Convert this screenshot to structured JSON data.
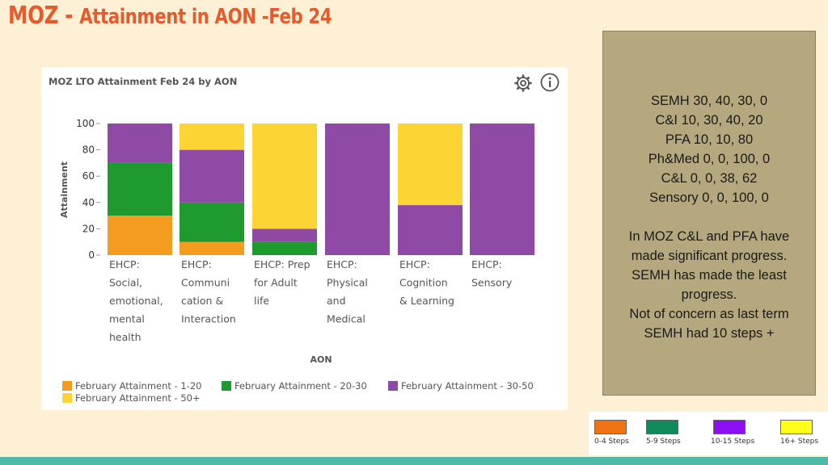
{
  "header": {
    "title_prefix": "MOZ - ",
    "title_rest": "Attainment in AON -Feb 24"
  },
  "panel": {
    "title": "MOZ LTO Attainment Feb 24 by AON"
  },
  "chart_data": {
    "type": "bar",
    "stacked": true,
    "title": "MOZ LTO Attainment Feb 24 by AON",
    "xlabel": "AON",
    "ylabel": "Attainment",
    "ylim": [
      0,
      100
    ],
    "yticks": [
      0,
      20,
      40,
      60,
      80,
      100
    ],
    "grid": false,
    "legend_position": "bottom-left",
    "categories": [
      [
        "EHCP:",
        "Social,",
        "emotional,",
        "mental",
        "health"
      ],
      [
        "EHCP:",
        "Communi",
        "cation &",
        "Interaction"
      ],
      [
        "EHCP: Prep",
        "for Adult",
        "life"
      ],
      [
        "EHCP:",
        "Physical",
        "and",
        "Medical"
      ],
      [
        "EHCP:",
        "Cognition",
        "& Learning"
      ],
      [
        "EHCP:",
        "Sensory"
      ]
    ],
    "series": [
      {
        "name": "February Attainment - 1-20",
        "color": "#f39c1f",
        "values": [
          30,
          10,
          0,
          0,
          0,
          0
        ]
      },
      {
        "name": "February Attainment - 20-30",
        "color": "#1f9a2f",
        "values": [
          40,
          30,
          10,
          0,
          0,
          0
        ]
      },
      {
        "name": "February Attainment - 30-50",
        "color": "#8f4aa6",
        "values": [
          30,
          40,
          10,
          100,
          38,
          100
        ]
      },
      {
        "name": "February Attainment - 50+",
        "color": "#fcd535",
        "values": [
          0,
          20,
          80,
          0,
          62,
          0
        ]
      }
    ]
  },
  "sidebar": {
    "lines_a": [
      "SEMH 30, 40, 30, 0",
      "C&I 10, 30, 40, 20",
      "PFA 10, 10, 80",
      "Ph&Med 0, 0, 100, 0",
      "C&L 0, 0, 38, 62",
      "Sensory 0, 0, 100, 0"
    ],
    "lines_b": [
      "In MOZ C&L and PFA have",
      "made significant progress.",
      "SEMH has made the least",
      "progress.",
      "Not of concern as last term",
      "SEMH had 10 steps +"
    ]
  },
  "key": [
    {
      "label": "0-4 Steps",
      "color": "#ef7411"
    },
    {
      "label": "5-9 Steps",
      "color": "#0f8a5a"
    },
    {
      "label": "10-15 Steps",
      "color": "#8b0ff0"
    },
    {
      "label": "16+ Steps",
      "color": "#ffff1a"
    }
  ],
  "colors": {
    "title": "#e55b2d",
    "background": "#fdf0d5",
    "sidebox": "#b5a87e",
    "strip": "#4fb9a8"
  }
}
